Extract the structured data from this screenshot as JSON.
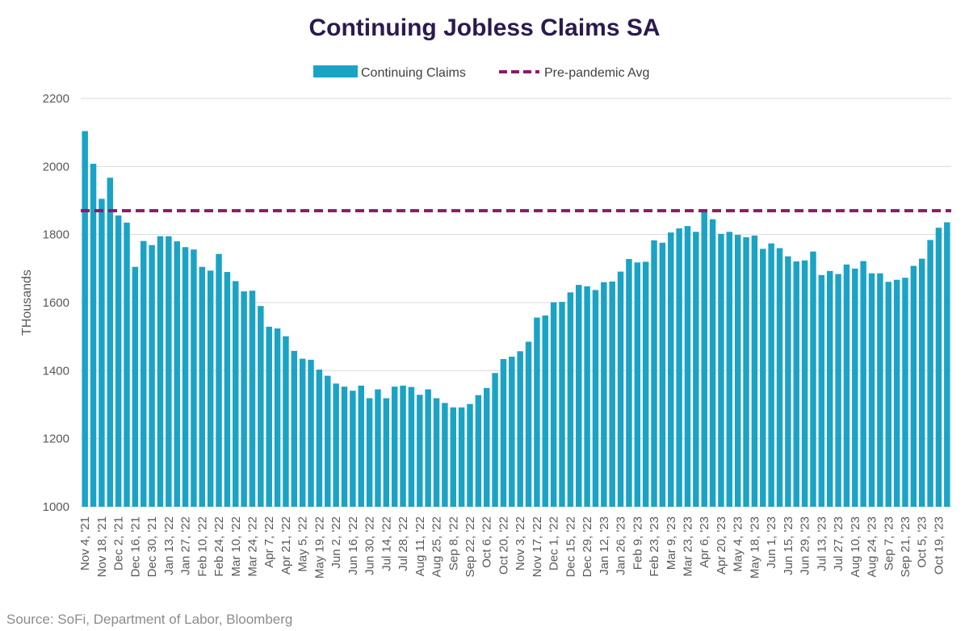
{
  "chart_data": {
    "type": "bar",
    "title": "Continuing Jobless Claims SA",
    "ylabel": "THousands",
    "xlabel": "",
    "ylim": [
      1000,
      2200
    ],
    "yticks": [
      1000,
      1200,
      1400,
      1600,
      1800,
      2000,
      2200
    ],
    "legend_position": "top-center",
    "colors": {
      "bars": "#1ba3c6",
      "reference_line": "#8b1a6b",
      "grid": "#d9d9d9"
    },
    "series": [
      {
        "name": "Continuing Claims",
        "values": [
          2104,
          2008,
          1905,
          1967,
          1856,
          1835,
          1705,
          1781,
          1769,
          1795,
          1795,
          1780,
          1763,
          1756,
          1705,
          1694,
          1743,
          1690,
          1663,
          1633,
          1635,
          1590,
          1529,
          1524,
          1501,
          1458,
          1435,
          1432,
          1403,
          1385,
          1362,
          1353,
          1341,
          1356,
          1319,
          1345,
          1319,
          1353,
          1356,
          1352,
          1329,
          1345,
          1319,
          1305,
          1292,
          1292,
          1302,
          1328,
          1349,
          1393,
          1434,
          1441,
          1457,
          1485,
          1556,
          1562,
          1601,
          1602,
          1630,
          1652,
          1648,
          1637,
          1660,
          1662,
          1691,
          1728,
          1718,
          1720,
          1783,
          1776,
          1806,
          1818,
          1825,
          1808,
          1869,
          1845,
          1802,
          1808,
          1799,
          1792,
          1797,
          1758,
          1774,
          1760,
          1736,
          1721,
          1724,
          1750,
          1681,
          1693,
          1684,
          1712,
          1700,
          1722,
          1686,
          1686,
          1661,
          1667,
          1673,
          1708,
          1729,
          1784,
          1820,
          1836
        ]
      }
    ],
    "reference_lines": [
      {
        "name": "Pre-pandemic Avg",
        "value": 1870
      }
    ],
    "x_tick_labels": [
      "Nov 4, '21",
      "Nov 18, '21",
      "Dec 2, '21",
      "Dec 16, '21",
      "Dec 30, '21",
      "Jan 13, '22",
      "Jan 27, '22",
      "Feb 10, '22",
      "Feb 24, '22",
      "Mar 10, '22",
      "Mar 24, '22",
      "Apr 7, '22",
      "Apr 21, '22",
      "May 5, '22",
      "May 19, '22",
      "Jun 2, '22",
      "Jun 16, '22",
      "Jun 30, '22",
      "Jul 14, '22",
      "Jul 28, '22",
      "Aug 11, '22",
      "Aug 25, '22",
      "Sep 8, '22",
      "Sep 22, '22",
      "Oct 6, '22",
      "Oct 20, '22",
      "Nov 3, '22",
      "Nov 17, '22",
      "Dec 1, '22",
      "Dec 15, '22",
      "Dec 29, '22",
      "Jan 12, '23",
      "Jan 26, '23",
      "Feb 9, '23",
      "Feb 23, '23",
      "Mar 9, '23",
      "Mar 23, '23",
      "Apr 6, '23",
      "Apr 20, '23",
      "May 4, '23",
      "May 18, '23",
      "Jun 1, '23",
      "Jun 15, '23",
      "Jun 29, '23",
      "Jul 13, '23",
      "Jul 27, '23",
      "Aug 10, '23",
      "Aug 24, '23",
      "Sep 7, '23",
      "Sep 21, '23",
      "Oct 5, '23",
      "Oct 19, '23"
    ],
    "tick_every_n_bars": 2
  },
  "legend": {
    "series_label": "Continuing Claims",
    "reference_label": "Pre-pandemic Avg"
  },
  "source": "Source: SoFi, Department of Labor, Bloomberg"
}
